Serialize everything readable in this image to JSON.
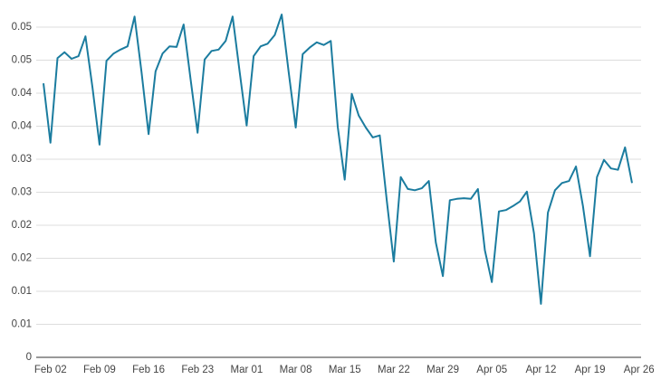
{
  "chart_data": {
    "type": "line",
    "x": [
      "Feb 01",
      "Feb 02",
      "Feb 03",
      "Feb 04",
      "Feb 05",
      "Feb 06",
      "Feb 07",
      "Feb 08",
      "Feb 09",
      "Feb 10",
      "Feb 11",
      "Feb 12",
      "Feb 13",
      "Feb 14",
      "Feb 15",
      "Feb 16",
      "Feb 17",
      "Feb 18",
      "Feb 19",
      "Feb 20",
      "Feb 21",
      "Feb 22",
      "Feb 23",
      "Feb 24",
      "Feb 25",
      "Feb 26",
      "Feb 27",
      "Feb 28",
      "Feb 29",
      "Mar 01",
      "Mar 02",
      "Mar 03",
      "Mar 04",
      "Mar 05",
      "Mar 06",
      "Mar 07",
      "Mar 08",
      "Mar 09",
      "Mar 10",
      "Mar 11",
      "Mar 12",
      "Mar 13",
      "Mar 14",
      "Mar 15",
      "Mar 16",
      "Mar 17",
      "Mar 18",
      "Mar 19",
      "Mar 20",
      "Mar 21",
      "Mar 22",
      "Mar 23",
      "Mar 24",
      "Mar 25",
      "Mar 26",
      "Mar 27",
      "Mar 28",
      "Mar 29",
      "Mar 30",
      "Mar 31",
      "Apr 01",
      "Apr 02",
      "Apr 03",
      "Apr 04",
      "Apr 05",
      "Apr 06",
      "Apr 07",
      "Apr 08",
      "Apr 09",
      "Apr 10",
      "Apr 11",
      "Apr 12",
      "Apr 13",
      "Apr 14",
      "Apr 15",
      "Apr 16",
      "Apr 17",
      "Apr 18",
      "Apr 19",
      "Apr 20",
      "Apr 21",
      "Apr 22",
      "Apr 23",
      "Apr 24",
      "Apr 25"
    ],
    "series": [
      {
        "color": "#1b7c9f",
        "values": [
          0.0415,
          0.0325,
          0.0453,
          0.0462,
          0.0452,
          0.0456,
          0.0486,
          0.0408,
          0.0322,
          0.0449,
          0.046,
          0.0466,
          0.0471,
          0.0516,
          0.0432,
          0.0338,
          0.0433,
          0.046,
          0.0471,
          0.047,
          0.0504,
          0.0421,
          0.034,
          0.0451,
          0.0464,
          0.0466,
          0.0479,
          0.0516,
          0.0432,
          0.0351,
          0.0456,
          0.0471,
          0.0475,
          0.0488,
          0.0519,
          0.0432,
          0.0348,
          0.0459,
          0.0469,
          0.0477,
          0.0473,
          0.0479,
          0.0349,
          0.0269,
          0.0399,
          0.0366,
          0.0348,
          0.0333,
          0.0336,
          0.0237,
          0.0145,
          0.0273,
          0.0255,
          0.0253,
          0.0256,
          0.0267,
          0.0174,
          0.0123,
          0.0238,
          0.024,
          0.0241,
          0.024,
          0.0255,
          0.0162,
          0.0114,
          0.0221,
          0.0223,
          0.0229,
          0.0236,
          0.0251,
          0.0188,
          0.0081,
          0.0219,
          0.0253,
          0.0264,
          0.0267,
          0.0289,
          0.0229,
          0.0153,
          0.0273,
          0.0299,
          0.0286,
          0.0284,
          0.0318,
          0.0264
        ]
      }
    ],
    "xticks": [
      "Feb 02",
      "Feb 09",
      "Feb 16",
      "Feb 23",
      "Mar 01",
      "Mar 08",
      "Mar 15",
      "Mar 22",
      "Mar 29",
      "Apr 05",
      "Apr 12",
      "Apr 19",
      "Apr 26"
    ],
    "ylim": [
      0,
      0.05
    ],
    "yticks": [
      0,
      {
        "value": 0.005,
        "label": "0.01"
      },
      0.01,
      {
        "value": 0.015,
        "label": "0.02"
      },
      0.02,
      {
        "value": 0.025,
        "label": "0.03"
      },
      0.03,
      {
        "value": 0.035,
        "label": "0.04"
      },
      0.04,
      {
        "value": 0.045,
        "label": "0.05"
      },
      0.05
    ],
    "grid": true
  }
}
